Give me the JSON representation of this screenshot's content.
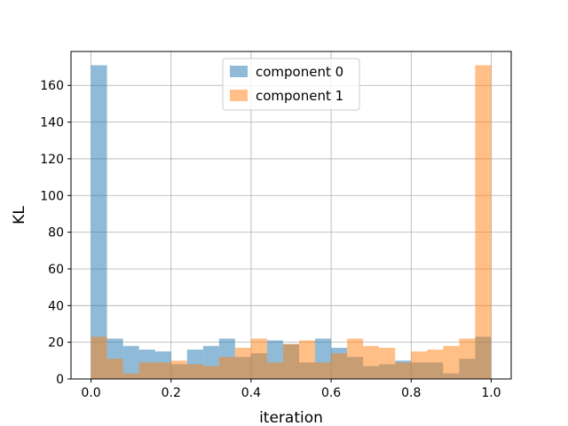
{
  "chart_data": {
    "type": "bar",
    "title": "",
    "xlabel": "iteration",
    "ylabel": "KL",
    "xlim": [
      -0.05,
      1.05
    ],
    "ylim": [
      0,
      178.5
    ],
    "bin_edges": [
      0.0,
      0.04,
      0.08,
      0.12,
      0.16,
      0.2,
      0.24,
      0.28,
      0.32,
      0.36,
      0.4,
      0.44,
      0.48,
      0.52,
      0.56,
      0.6,
      0.64,
      0.68,
      0.72,
      0.76,
      0.8,
      0.84,
      0.88,
      0.92,
      0.96,
      1.0
    ],
    "x_ticks": [
      "0.0",
      "0.2",
      "0.4",
      "0.6",
      "0.8",
      "1.0"
    ],
    "x_tick_values": [
      0.0,
      0.2,
      0.4,
      0.6,
      0.8,
      1.0
    ],
    "y_ticks": [
      "0",
      "20",
      "40",
      "60",
      "80",
      "100",
      "120",
      "140",
      "160"
    ],
    "y_tick_values": [
      0,
      20,
      40,
      60,
      80,
      100,
      120,
      140,
      160
    ],
    "grid": true,
    "legend_position": "upper-center",
    "series": [
      {
        "name": "component 0",
        "color": "#1f77b4",
        "alpha": 0.5,
        "values": [
          171,
          22,
          18,
          16,
          15,
          8,
          16,
          18,
          22,
          12,
          14,
          21,
          19,
          9,
          22,
          17,
          12,
          7,
          8,
          10,
          9,
          9,
          3,
          11,
          23
        ]
      },
      {
        "name": "component 1",
        "color": "#ff7f0e",
        "alpha": 0.5,
        "values": [
          23,
          11,
          3,
          9,
          9,
          10,
          8,
          7,
          12,
          17,
          22,
          9,
          19,
          21,
          9,
          14,
          22,
          18,
          17,
          9,
          15,
          16,
          18,
          22,
          171
        ]
      }
    ]
  }
}
